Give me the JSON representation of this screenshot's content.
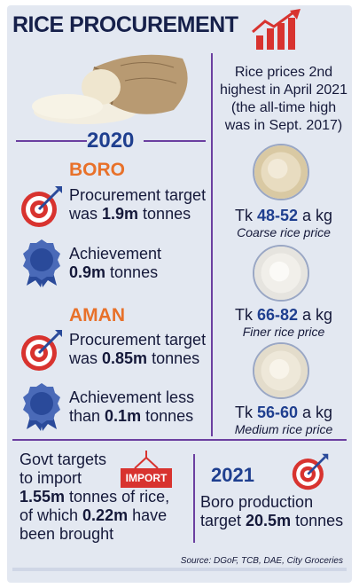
{
  "title": "RICE PROCUREMENT",
  "year_2020": "2020",
  "boro": {
    "label": "BORO",
    "target_line1": "Procurement target",
    "target_prefix": "was ",
    "target_value": "1.9m",
    "target_suffix": " tonnes",
    "achievement_line1": "Achievement",
    "achievement_value": "0.9m",
    "achievement_suffix": " tonnes"
  },
  "aman": {
    "label": "AMAN",
    "target_line1": "Procurement target",
    "target_prefix": "was ",
    "target_value": "0.85m",
    "target_suffix": " tonnes",
    "achievement_line1": "Achievement less",
    "achievement_prefix": "than ",
    "achievement_value": "0.1m",
    "achievement_suffix": " tonnes"
  },
  "rice_prices_note": {
    "line1": "Rice prices 2nd",
    "line2": "highest in April 2021",
    "line3": "(the all-time high",
    "line4": "was in Sept. 2017)"
  },
  "prices": [
    {
      "prefix": "Tk ",
      "range": "48-52",
      "suffix": " a kg",
      "label": "Coarse rice price"
    },
    {
      "prefix": "Tk ",
      "range": "66-82",
      "suffix": " a kg",
      "label": "Finer rice price"
    },
    {
      "prefix": "Tk ",
      "range": "56-60",
      "suffix": " a kg",
      "label": "Medium rice price"
    }
  ],
  "import": {
    "badge": "IMPORT",
    "line1": "Govt targets",
    "line2": "to import",
    "line3_value": "1.55m",
    "line3_suffix": " tonnes of rice,",
    "line4_prefix": "of which ",
    "line4_value": "0.22m",
    "line4_suffix": " have",
    "line5": "been brought"
  },
  "year_2021": "2021",
  "boro_2021": {
    "line1": "Boro production",
    "line2_prefix": "target ",
    "line2_value": "20.5m",
    "line2_suffix": " tonnes"
  },
  "source": "Source: DGoF, TCB, DAE, City Groceries",
  "colors": {
    "background": "#e3e8f1",
    "title": "#16204a",
    "accent_orange": "#e8712a",
    "accent_blue": "#1f3f8f",
    "divider_purple": "#6b3fa0",
    "red": "#d8332f"
  }
}
